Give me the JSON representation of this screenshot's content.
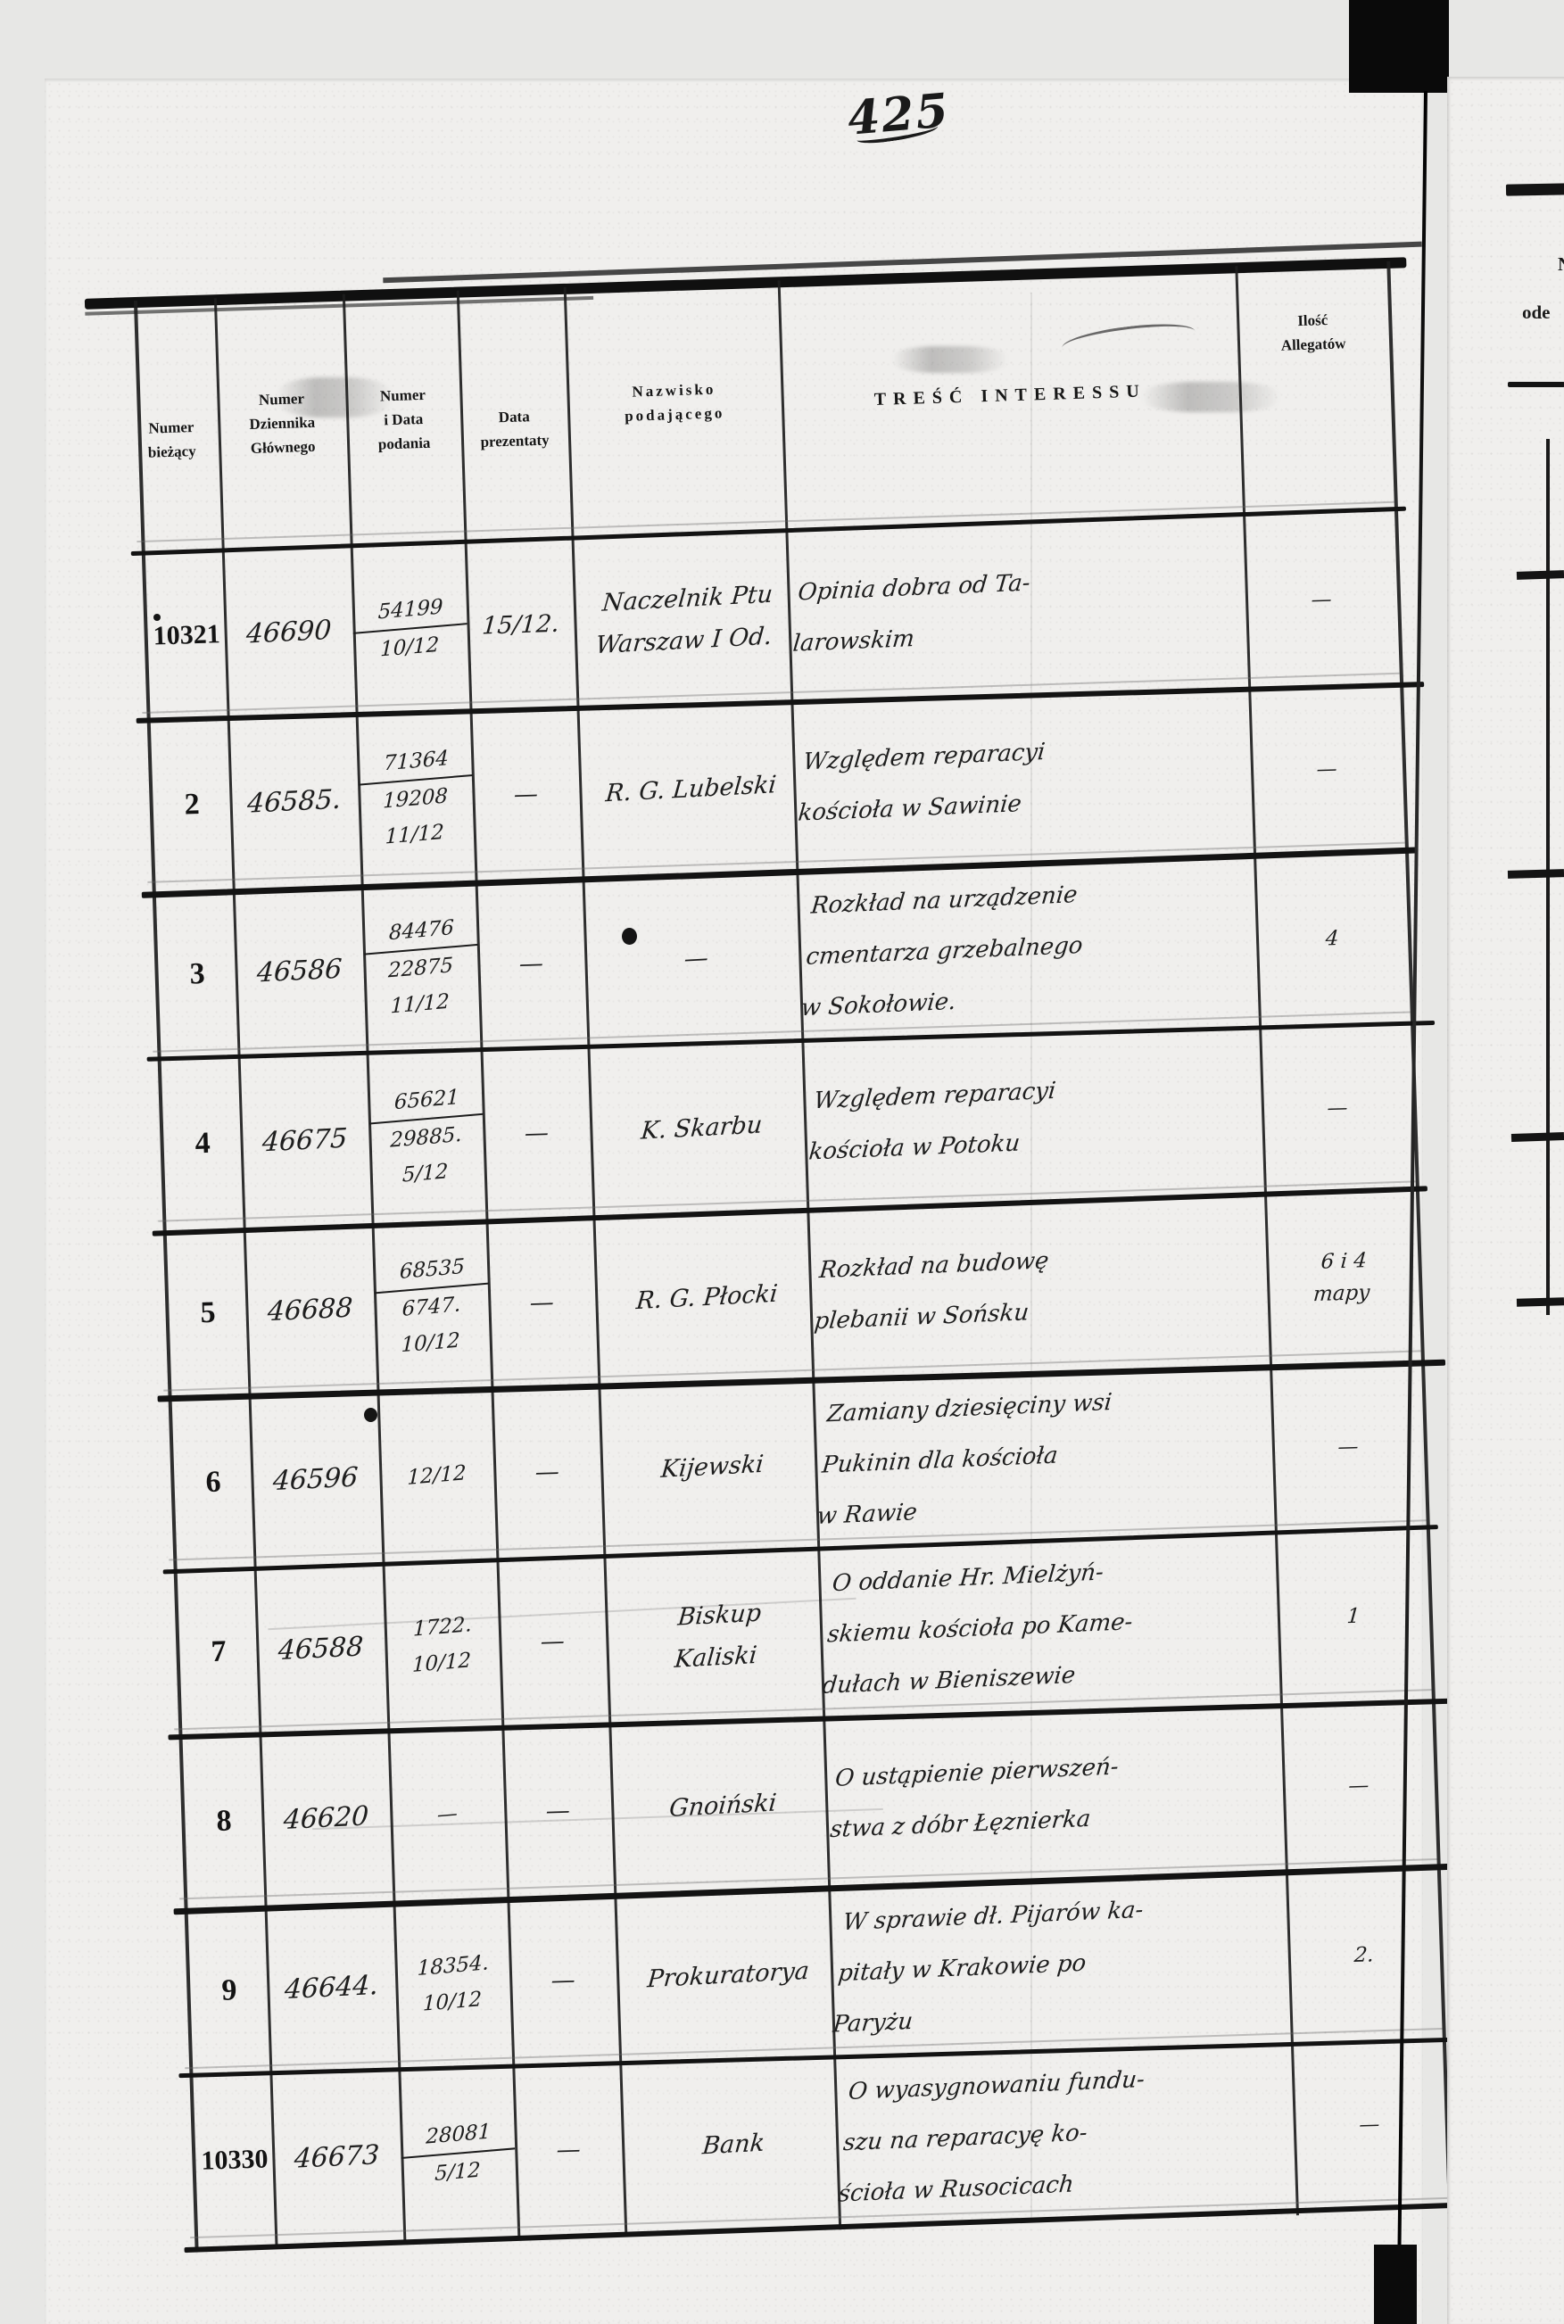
{
  "page_label": "425",
  "table": {
    "columns": [
      "Numer\nbieżący",
      "Numer\nDziennika\nGłównego",
      "Numer\ni Data\npodania",
      "Data\nprezentaty",
      "Nazwisko\npodającego",
      "TREŚĆ INTERESSU",
      "Ilość\nAllegatów"
    ],
    "rows": [
      {
        "numer": "10321",
        "dziennik": "46690",
        "podanie": "54199\n10/12",
        "prezentata": "15/12.",
        "nazwisko": "Naczelnik Ptu\nWarszaw I Od.",
        "tresc": "Opinia dobra od Ta-\nlarowskim",
        "allegaty": "—"
      },
      {
        "numer": "2",
        "dziennik": "46585.",
        "podanie": "71364\n19208\n11/12",
        "prezentata": "—",
        "nazwisko": "R. G. Lubelski",
        "tresc": "Względem reparacyi\nkościoła w Sawinie",
        "allegaty": "—"
      },
      {
        "numer": "3",
        "dziennik": "46586",
        "podanie": "84476\n22875\n11/12",
        "prezentata": "—",
        "nazwisko": "—",
        "tresc": "Rozkład na urządzenie\ncmentarza grzebalnego\nw Sokołowie.",
        "allegaty": "4"
      },
      {
        "numer": "4",
        "dziennik": "46675",
        "podanie": "65621\n29885.\n5/12",
        "prezentata": "—",
        "nazwisko": "K. Skarbu",
        "tresc": "Względem reparacyi\nkościoła w Potoku",
        "allegaty": "—"
      },
      {
        "numer": "5",
        "dziennik": "46688",
        "podanie": "68535\n6747.\n10/12",
        "prezentata": "—",
        "nazwisko": "R. G. Płocki",
        "tresc": "Rozkład na budowę\nplebanii w Sońsku",
        "allegaty": "6 i 4\nmapy"
      },
      {
        "numer": "6",
        "dziennik": "46596",
        "podanie": "12/12",
        "prezentata": "—",
        "nazwisko": "Kijewski",
        "tresc": "Zamiany dziesięciny wsi\nPukinin dla kościoła\nw Rawie",
        "allegaty": "—"
      },
      {
        "numer": "7",
        "dziennik": "46588",
        "podanie": "1722.\n10/12",
        "prezentata": "—",
        "nazwisko": "Biskup\nKaliski",
        "tresc": "O oddanie Hr. Mielżyń-\nskiemu kościoła po Kame-\ndułach w Bieniszewie",
        "allegaty": "1"
      },
      {
        "numer": "8",
        "dziennik": "46620",
        "podanie": "—",
        "prezentata": "—",
        "nazwisko": "Gnoiński",
        "tresc": "O ustąpienie pierwszeń-\nstwa z dóbr Łęznierka",
        "allegaty": "—"
      },
      {
        "numer": "9",
        "dziennik": "46644.",
        "podanie": "18354.\n10/12",
        "prezentata": "—",
        "nazwisko": "Prokuratorya",
        "tresc": "W sprawie dł. Pijarów ka-\npitały w Krakowie po\nParyżu",
        "allegaty": "2."
      },
      {
        "numer": "10330",
        "dziennik": "46673",
        "podanie": "28081\n5/12",
        "prezentata": "—",
        "nazwisko": "Bank",
        "tresc": "O wyasygnowaniu fundu-\nszu na reparacyę ko-\nścioła w Rusocicach",
        "allegaty": "—"
      }
    ]
  },
  "adjacent_page": {
    "visible_text_fragments": [
      "N",
      "ode"
    ]
  }
}
